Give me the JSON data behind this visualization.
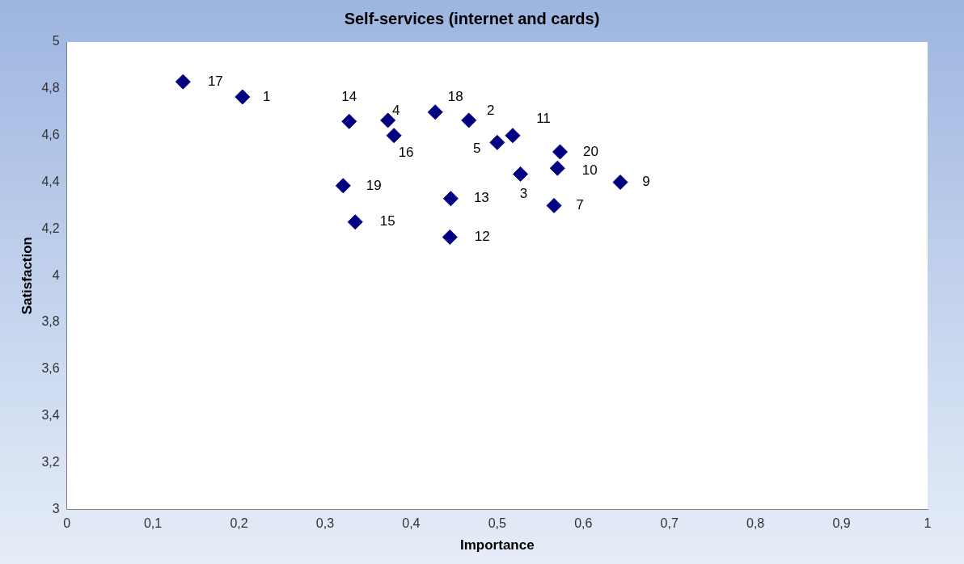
{
  "chart_data": {
    "type": "scatter",
    "title": "Self-services (internet and cards)",
    "xlabel": "Importance",
    "ylabel": "Satisfaction",
    "x": [
      0.135,
      0.204,
      0.328,
      0.373,
      0.38,
      0.428,
      0.467,
      0.5,
      0.518,
      0.573,
      0.527,
      0.57,
      0.643,
      0.321,
      0.446,
      0.566,
      0.335,
      0.445
    ],
    "series": [
      {
        "color": "#000080",
        "values": [
          4.83,
          4.765,
          4.66,
          4.665,
          4.6,
          4.7,
          4.665,
          4.57,
          4.6,
          4.53,
          4.435,
          4.46,
          4.4,
          4.385,
          4.33,
          4.3,
          4.23,
          4.165
        ]
      }
    ],
    "marker": "diamond",
    "grid": false,
    "legend": false,
    "xlim": [
      0,
      1
    ],
    "xticks": [
      0,
      {
        "value": 0.1,
        "label": "0,1"
      },
      {
        "value": 0.2,
        "label": "0,2"
      },
      {
        "value": 0.3,
        "label": "0,3"
      },
      {
        "value": 0.4,
        "label": "0,4"
      },
      {
        "value": 0.5,
        "label": "0,5"
      },
      {
        "value": 0.6,
        "label": "0,6"
      },
      {
        "value": 0.7,
        "label": "0,7"
      },
      {
        "value": 0.8,
        "label": "0,8"
      },
      {
        "value": 0.9,
        "label": "0,9"
      },
      1
    ],
    "ylim": [
      3,
      5
    ],
    "yticks": [
      3,
      {
        "value": 3.2,
        "label": "3,2"
      },
      {
        "value": 3.4,
        "label": "3,4"
      },
      {
        "value": 3.6,
        "label": "3,6"
      },
      {
        "value": 3.8,
        "label": "3,8"
      },
      4,
      {
        "value": 4.2,
        "label": "4,2"
      },
      {
        "value": 4.4,
        "label": "4,4"
      },
      {
        "value": 4.6,
        "label": "4,6"
      },
      {
        "value": 4.8,
        "label": "4,8"
      },
      5
    ],
    "annotations": [
      {
        "text": "17",
        "x": 0.135,
        "y": 4.83
      },
      {
        "text": "1",
        "x": 0.204,
        "y": 4.765
      },
      {
        "text": "14",
        "x": 0.328,
        "y": 4.66
      },
      {
        "text": "4",
        "x": 0.373,
        "y": 4.665
      },
      {
        "text": "16",
        "x": 0.38,
        "y": 4.6
      },
      {
        "text": "18",
        "x": 0.428,
        "y": 4.7
      },
      {
        "text": "2",
        "x": 0.467,
        "y": 4.665
      },
      {
        "text": "5",
        "x": 0.5,
        "y": 4.57
      },
      {
        "text": "11",
        "x": 0.518,
        "y": 4.6
      },
      {
        "text": "20",
        "x": 0.573,
        "y": 4.53
      },
      {
        "text": "3",
        "x": 0.527,
        "y": 4.435
      },
      {
        "text": "10",
        "x": 0.57,
        "y": 4.46
      },
      {
        "text": "9",
        "x": 0.643,
        "y": 4.4
      },
      {
        "text": "19",
        "x": 0.321,
        "y": 4.385
      },
      {
        "text": "13",
        "x": 0.446,
        "y": 4.33
      },
      {
        "text": "7",
        "x": 0.566,
        "y": 4.3
      },
      {
        "text": "15",
        "x": 0.335,
        "y": 4.23
      },
      {
        "text": "12",
        "x": 0.445,
        "y": 4.165
      }
    ]
  }
}
